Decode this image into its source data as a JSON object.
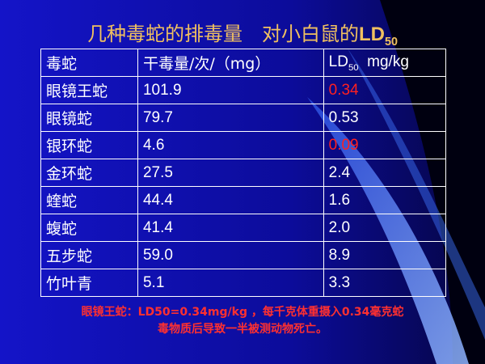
{
  "title": {
    "text": "几种毒蛇的排毒量　对小白鼠的",
    "latin": "LD",
    "subscript": "50"
  },
  "table": {
    "header": [
      "毒蛇",
      "干毒量/次/（mg）",
      {
        "main": "LD",
        "subscript": "50",
        "rest": "  mg/kg"
      }
    ],
    "rows": [
      [
        "眼镜王蛇",
        "101.9",
        "0.34"
      ],
      [
        "眼镜蛇",
        "79.7",
        "0.53"
      ],
      [
        "银环蛇",
        "4.6",
        "0.09"
      ],
      [
        "金环蛇",
        "27.5",
        "2.4"
      ],
      [
        "蝰蛇",
        "44.4",
        "1.6"
      ],
      [
        "蝮蛇",
        "41.4",
        "2.0"
      ],
      [
        "五步蛇",
        "59.0",
        "8.9"
      ],
      [
        "竹叶青",
        "5.1",
        "3.3"
      ]
    ],
    "highlight": {
      "color": "#ff2020",
      "cells": [
        [
          0,
          2
        ],
        [
          2,
          2
        ]
      ]
    }
  },
  "note": [
    "眼镜王蛇：LD50=0.34mg/kg ，每千克体重摄入0.34毫克蛇",
    "毒物质后导致一半被测动物死亡。"
  ]
}
